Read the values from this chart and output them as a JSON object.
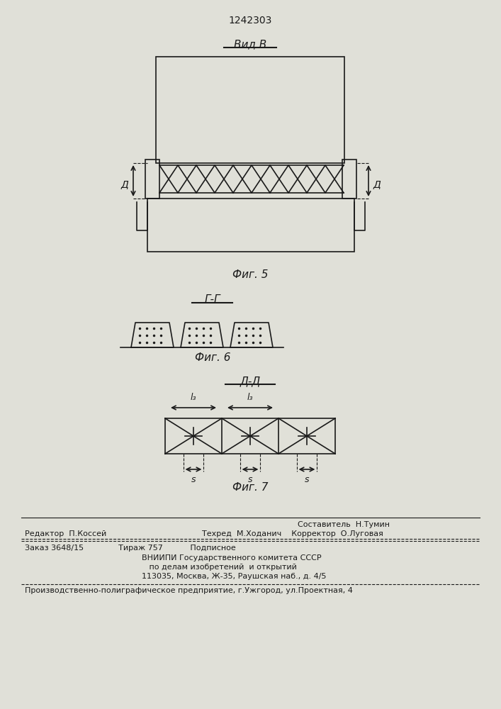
{
  "title": "1242303",
  "bg_color": "#e8e8e0",
  "line_color": "#1a1a1a",
  "fig5_label": "Фиг. 5",
  "fig6_label": "Фиг. 6",
  "fig7_label": "Фиг. 7",
  "vid_b_label": "Вид В",
  "gg_label": "Г-Г",
  "dd_label": "Д-Д",
  "d_label": "Д",
  "l3_label": "l₃",
  "s_label": "s",
  "footer_line1": "Составитель  Н.Тумин",
  "footer_line2": "Редактор  П.Коссей",
  "footer_line3": "Техред  М.Ходанич    Корректор  О.Луговая",
  "footer_line4": "Заказ 3648/15              Тираж 757           Подписное",
  "footer_line5": "ВНИИПИ Государственного комитета СССР",
  "footer_line6": "   по делам изобретений  и открытий",
  "footer_line7": "113035, Москва, Ж-35, Раушская наб., д. 4/5",
  "footer_line8": "Производственно-полиграфическое предприятие, г.Ужгород, ул.Проектная, 4"
}
